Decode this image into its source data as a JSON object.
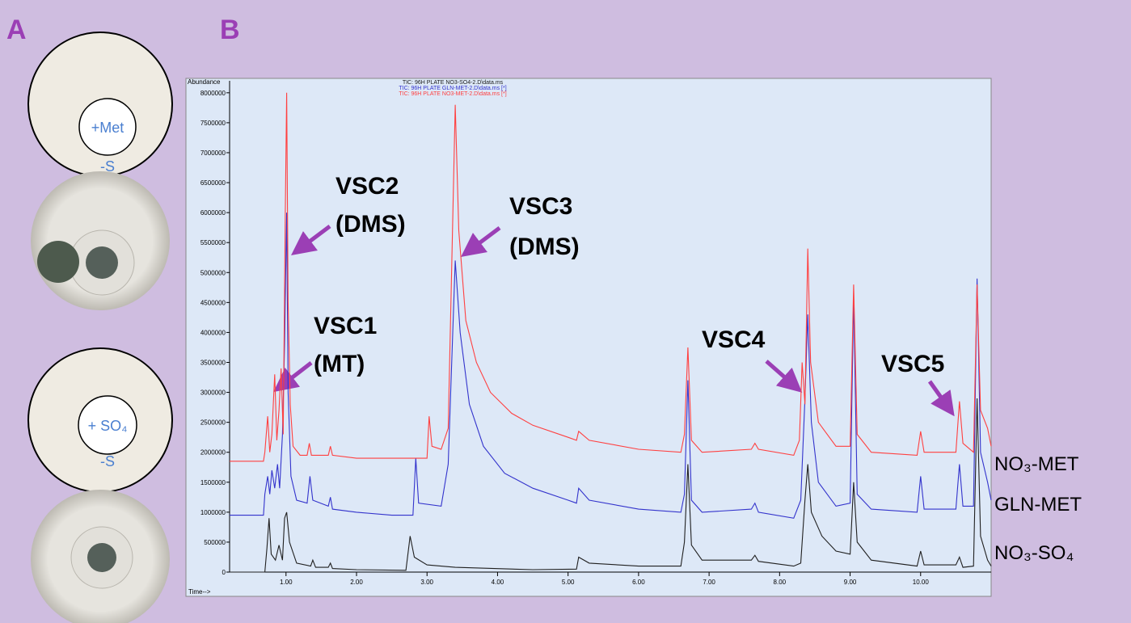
{
  "panel_a": {
    "label": "A",
    "plates": [
      {
        "inner": "+Met",
        "outer": "-S"
      },
      {
        "inner": "+ SO₄",
        "outer": "-S"
      }
    ]
  },
  "chart_data": {
    "type": "line",
    "panel_label": "B",
    "ylabel": "Abundance",
    "xlabel": "Time-->",
    "xlim": [
      0.2,
      11.0
    ],
    "ylim": [
      0,
      8200000
    ],
    "xticks": [
      {
        "value": 1,
        "label": "1.00"
      },
      {
        "value": 2,
        "label": "2.00"
      },
      {
        "value": 3,
        "label": "3.00"
      },
      {
        "value": 4,
        "label": "4.00"
      },
      {
        "value": 5,
        "label": "5.00"
      },
      {
        "value": 6,
        "label": "6.00"
      },
      {
        "value": 7,
        "label": "7.00"
      },
      {
        "value": 8,
        "label": "8.00"
      },
      {
        "value": 9,
        "label": "9.00"
      },
      {
        "value": 10,
        "label": "10.00"
      }
    ],
    "yticks": [
      0,
      500000,
      1000000,
      1500000,
      2000000,
      2500000,
      3000000,
      3500000,
      4000000,
      4500000,
      5000000,
      5500000,
      6000000,
      6500000,
      7000000,
      7500000,
      8000000
    ],
    "annotations": [
      {
        "text": [
          "VSC2",
          "(DMS)"
        ]
      },
      {
        "text": [
          "VSC3",
          "(DMS)"
        ]
      },
      {
        "text": [
          "VSC1",
          "(MT)"
        ]
      },
      {
        "text": [
          "VSC4"
        ]
      },
      {
        "text": [
          "VSC5"
        ]
      }
    ],
    "series": [
      {
        "name": "NO₃-SO₄",
        "file": "TIC: 96H PLATE NO3-SO4-2.D\\data.ms",
        "color": "#202020",
        "x": [
          0.2,
          0.7,
          0.73,
          0.76,
          0.79,
          0.85,
          0.9,
          0.95,
          0.98,
          1.01,
          1.05,
          1.15,
          1.35,
          1.38,
          1.42,
          1.6,
          1.63,
          1.66,
          2.0,
          2.7,
          2.76,
          2.82,
          3.0,
          3.4,
          4.5,
          5.12,
          5.15,
          5.3,
          6.0,
          6.6,
          6.65,
          6.7,
          6.75,
          6.9,
          7.6,
          7.65,
          7.7,
          8.2,
          8.3,
          8.36,
          8.4,
          8.45,
          8.6,
          8.8,
          9.0,
          9.05,
          9.1,
          9.3,
          9.95,
          10.0,
          10.05,
          10.5,
          10.55,
          10.6,
          10.75,
          10.8,
          10.85,
          10.95,
          11.0
        ],
        "values": [
          0,
          0,
          400000,
          900000,
          300000,
          200000,
          450000,
          200000,
          900000,
          1000000,
          500000,
          150000,
          100000,
          200000,
          80000,
          80000,
          150000,
          60000,
          40000,
          30000,
          600000,
          250000,
          120000,
          80000,
          40000,
          50000,
          250000,
          150000,
          100000,
          100000,
          500000,
          1800000,
          450000,
          200000,
          200000,
          280000,
          180000,
          100000,
          150000,
          1200000,
          1800000,
          1000000,
          600000,
          350000,
          300000,
          1500000,
          500000,
          200000,
          100000,
          350000,
          120000,
          120000,
          250000,
          80000,
          100000,
          2900000,
          600000,
          200000,
          100000
        ]
      },
      {
        "name": "GLN-MET",
        "file": "TIC: 96H PLATE GLN-MET-2.D\\data.ms [*]",
        "color": "#3333cc",
        "x": [
          0.2,
          0.68,
          0.7,
          0.74,
          0.77,
          0.8,
          0.84,
          0.88,
          0.91,
          0.95,
          0.98,
          1.01,
          1.03,
          1.07,
          1.15,
          1.3,
          1.34,
          1.38,
          1.6,
          1.63,
          1.66,
          2.0,
          2.5,
          2.8,
          2.84,
          2.88,
          3.2,
          3.3,
          3.4,
          3.47,
          3.6,
          3.8,
          4.1,
          4.5,
          5.0,
          5.12,
          5.15,
          5.3,
          6.0,
          6.6,
          6.65,
          6.7,
          6.75,
          6.9,
          7.6,
          7.65,
          7.7,
          8.2,
          8.3,
          8.36,
          8.4,
          8.45,
          8.55,
          8.8,
          9.0,
          9.05,
          9.1,
          9.3,
          9.95,
          10.0,
          10.05,
          10.5,
          10.55,
          10.6,
          10.75,
          10.8,
          10.85,
          10.95,
          11.0
        ],
        "values": [
          950000,
          950000,
          1300000,
          1600000,
          1300000,
          1700000,
          1400000,
          1800000,
          1400000,
          2300000,
          3800000,
          6000000,
          3000000,
          1600000,
          1200000,
          1150000,
          1600000,
          1200000,
          1100000,
          1250000,
          1050000,
          1000000,
          950000,
          950000,
          1900000,
          1150000,
          1100000,
          1800000,
          5200000,
          4000000,
          2800000,
          2100000,
          1650000,
          1400000,
          1200000,
          1150000,
          1400000,
          1200000,
          1050000,
          1000000,
          1300000,
          3200000,
          1200000,
          1000000,
          1050000,
          1150000,
          1000000,
          900000,
          1200000,
          2900000,
          4300000,
          2500000,
          1500000,
          1100000,
          1150000,
          4600000,
          1300000,
          1050000,
          1000000,
          1600000,
          1050000,
          1050000,
          1800000,
          1100000,
          1100000,
          4900000,
          2000000,
          1500000,
          1200000
        ]
      },
      {
        "name": "NO₃-MET",
        "file": "TIC: 96H PLATE NO3-MET-2.D\\data.ms [*]",
        "color": "#ff4040",
        "x": [
          0.2,
          0.68,
          0.7,
          0.74,
          0.77,
          0.8,
          0.84,
          0.87,
          0.9,
          0.93,
          0.96,
          0.99,
          1.01,
          1.03,
          1.06,
          1.1,
          1.2,
          1.3,
          1.33,
          1.36,
          1.6,
          1.63,
          1.66,
          2.0,
          2.5,
          3.0,
          3.03,
          3.07,
          3.2,
          3.3,
          3.4,
          3.45,
          3.55,
          3.7,
          3.9,
          4.2,
          4.5,
          5.0,
          5.12,
          5.15,
          5.3,
          6.0,
          6.6,
          6.65,
          6.7,
          6.75,
          6.9,
          7.6,
          7.65,
          7.7,
          8.2,
          8.28,
          8.32,
          8.36,
          8.4,
          8.44,
          8.55,
          8.8,
          9.0,
          9.05,
          9.1,
          9.3,
          9.95,
          10.0,
          10.05,
          10.5,
          10.55,
          10.6,
          10.75,
          10.8,
          10.85,
          10.95,
          11.0
        ],
        "values": [
          1850000,
          1850000,
          2000000,
          2600000,
          2000000,
          2300000,
          3300000,
          2200000,
          2700000,
          3400000,
          2300000,
          6000000,
          8000000,
          4500000,
          2800000,
          2100000,
          1950000,
          1950000,
          2150000,
          1950000,
          1950000,
          2100000,
          1950000,
          1900000,
          1900000,
          1900000,
          2600000,
          2100000,
          2050000,
          2400000,
          7800000,
          5700000,
          4200000,
          3500000,
          3000000,
          2650000,
          2450000,
          2250000,
          2200000,
          2350000,
          2200000,
          2050000,
          2000000,
          2300000,
          3750000,
          2200000,
          2000000,
          2050000,
          2150000,
          2050000,
          1950000,
          2200000,
          3500000,
          2800000,
          5400000,
          3500000,
          2500000,
          2100000,
          2100000,
          4800000,
          2300000,
          2000000,
          1950000,
          2350000,
          2000000,
          2000000,
          2850000,
          2150000,
          2000000,
          4800000,
          2700000,
          2400000,
          2100000
        ]
      }
    ]
  }
}
